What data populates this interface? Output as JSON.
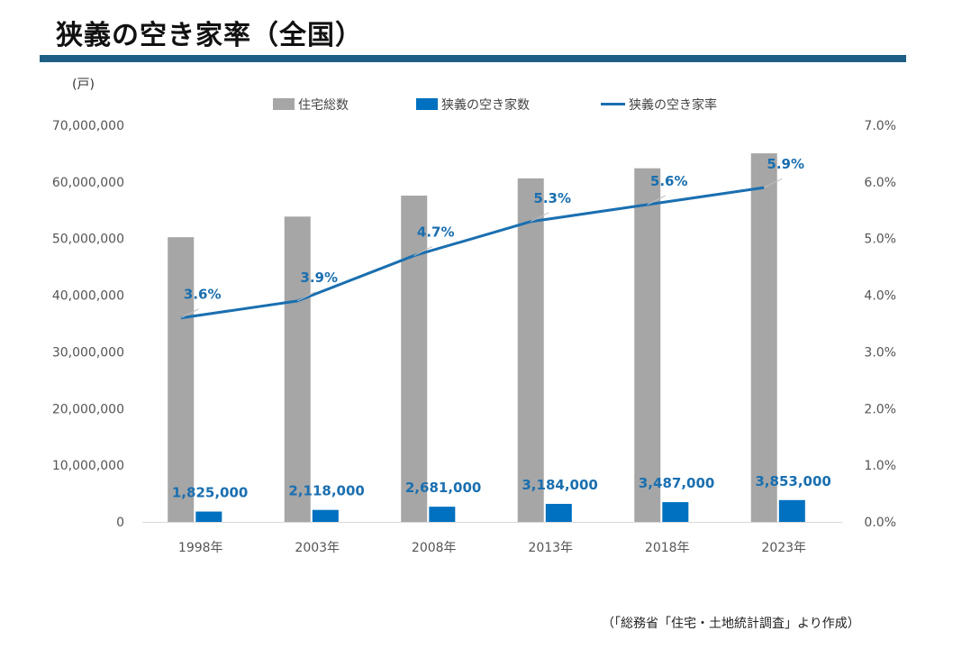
{
  "header": {
    "title": "狭義の空き家率（全国）",
    "unit": "(戸)"
  },
  "source": "（「総務省「住宅・土地統計調査」より作成）",
  "colors": {
    "total": "#a6a6a6",
    "vacant": "#0070c0",
    "rate": "#1a6fb0",
    "label": "#1a6fb0",
    "title_rule": "#1f5f86"
  },
  "chart_data": {
    "type": "bar",
    "categories": [
      "1998年",
      "2003年",
      "2008年",
      "2013年",
      "2018年",
      "2023年"
    ],
    "series": [
      {
        "name": "住宅総数",
        "type": "bar",
        "axis": "left",
        "values": [
          50250000,
          53890000,
          57590000,
          60630000,
          62410000,
          65050000
        ]
      },
      {
        "name": "狭義の空き家数",
        "type": "bar",
        "axis": "left",
        "values": [
          1825000,
          2118000,
          2681000,
          3184000,
          3487000,
          3853000
        ],
        "data_labels": [
          "1,825,000",
          "2,118,000",
          "2,681,000",
          "3,184,000",
          "3,487,000",
          "3,853,000"
        ]
      },
      {
        "name": "狭義の空き家率",
        "type": "line",
        "axis": "right",
        "values": [
          3.6,
          3.9,
          4.7,
          5.3,
          5.6,
          5.9
        ],
        "data_labels": [
          "3.6%",
          "3.9%",
          "4.7%",
          "5.3%",
          "5.6%",
          "5.9%"
        ]
      }
    ],
    "ylim_left": [
      0,
      70000000
    ],
    "ylim_right": [
      0,
      7
    ],
    "left_ticks": [
      "0",
      "10,000,000",
      "20,000,000",
      "30,000,000",
      "40,000,000",
      "50,000,000",
      "60,000,000",
      "70,000,000"
    ],
    "right_ticks": [
      "0.0%",
      "1.0%",
      "2.0%",
      "3.0%",
      "4.0%",
      "5.0%",
      "6.0%",
      "7.0%"
    ],
    "grid": false,
    "legend_position": "top"
  }
}
